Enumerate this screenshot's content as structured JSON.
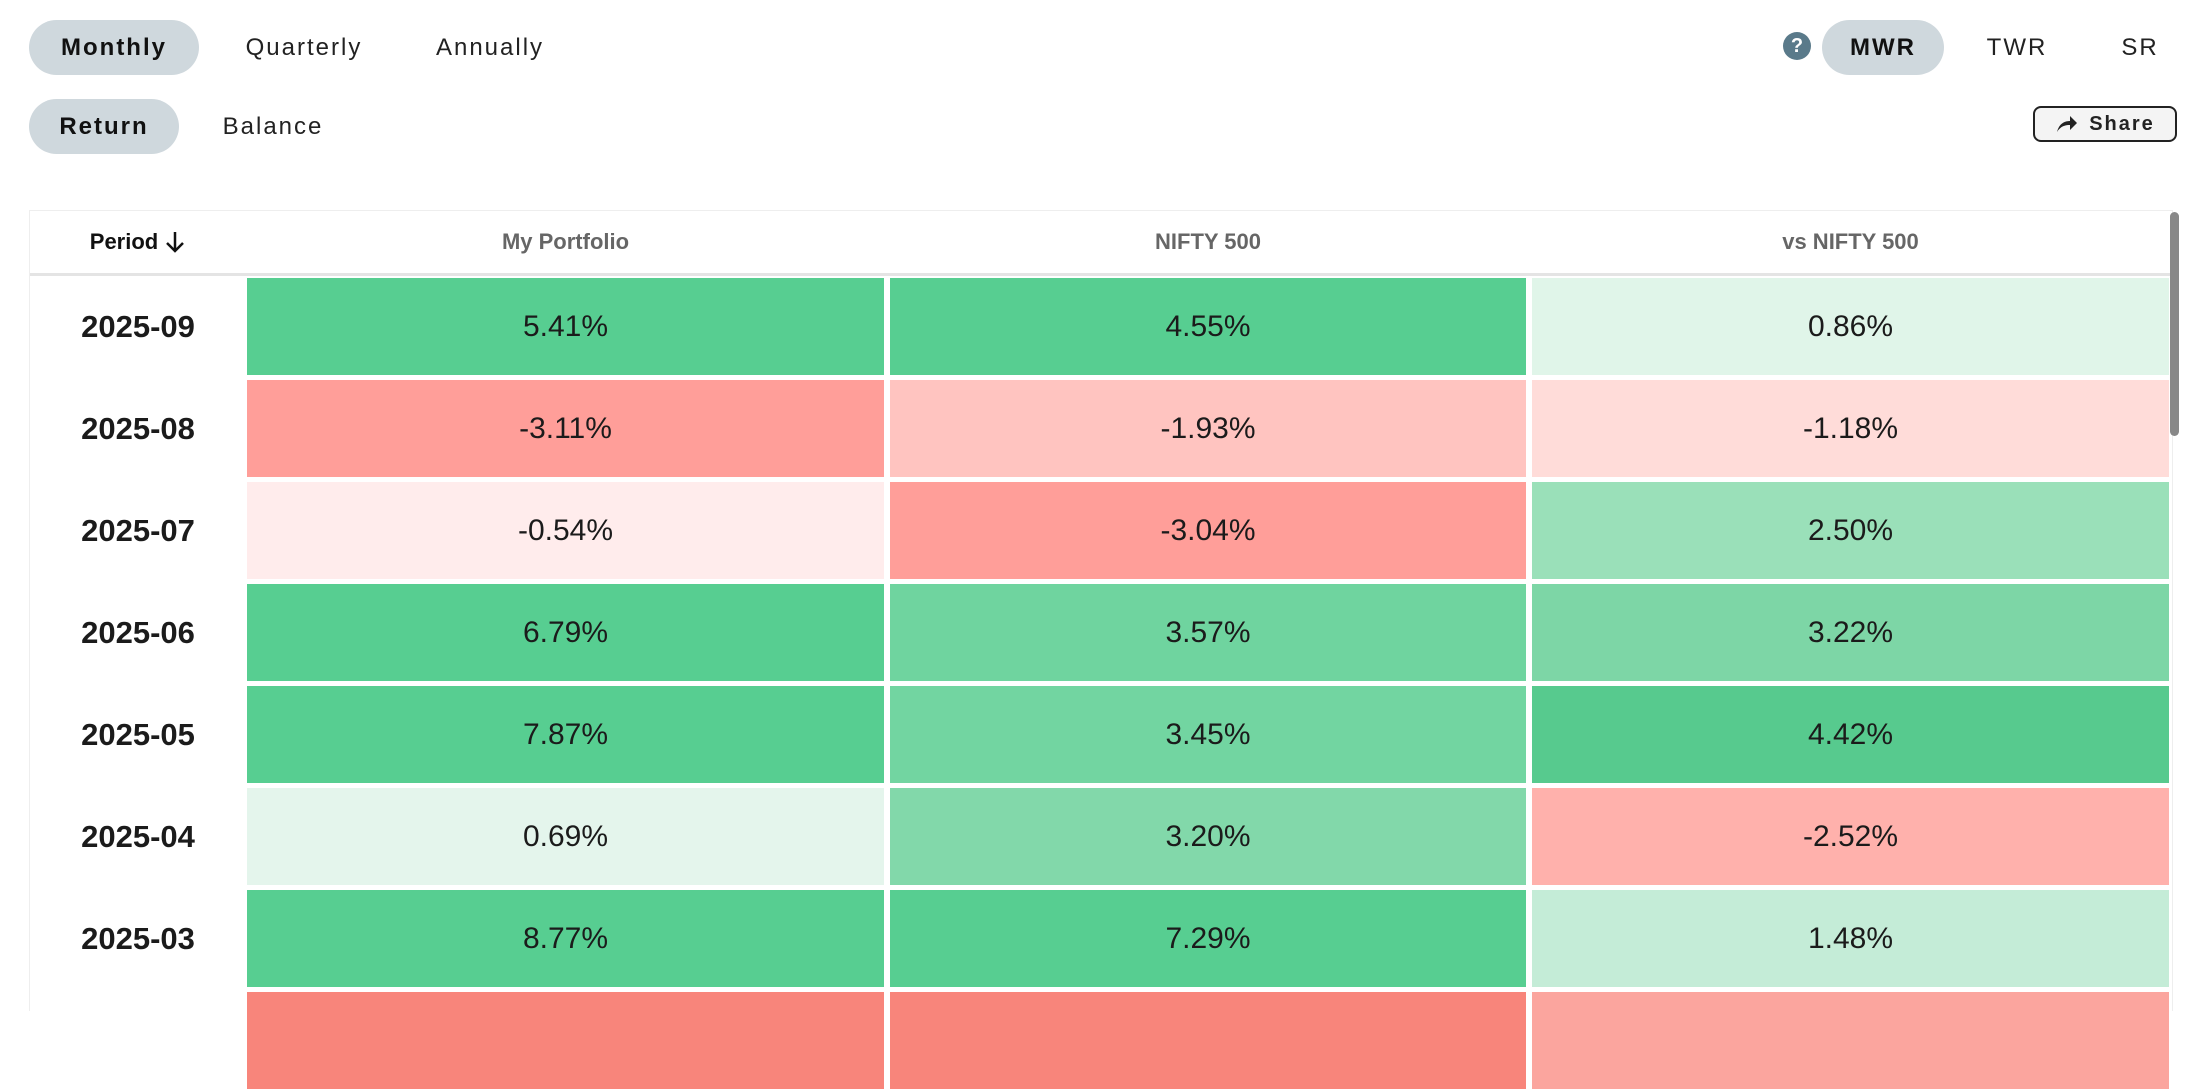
{
  "period_tabs": [
    {
      "label": "Monthly",
      "active": true
    },
    {
      "label": "Quarterly",
      "active": false
    },
    {
      "label": "Annually",
      "active": false
    }
  ],
  "view_tabs": [
    {
      "label": "Return",
      "active": true
    },
    {
      "label": "Balance",
      "active": false
    }
  ],
  "method_help_icon": "question-circle-icon",
  "method_tabs": [
    {
      "label": "MWR",
      "active": true
    },
    {
      "label": "TWR",
      "active": false
    },
    {
      "label": "SR",
      "active": false
    }
  ],
  "share": {
    "label": "Share",
    "icon": "share-arrow-icon"
  },
  "table": {
    "headers": {
      "period": "Period",
      "sort_icon": "arrow-down-icon",
      "cols": [
        "My Portfolio",
        "NIFTY 500",
        "vs NIFTY 500"
      ]
    },
    "rows": [
      {
        "period": "2025-09",
        "values": [
          "5.41%",
          "4.55%",
          "0.86%"
        ],
        "colors": [
          "#57ce91",
          "#57ce91",
          "#e0f5e9"
        ]
      },
      {
        "period": "2025-08",
        "values": [
          "-3.11%",
          "-1.93%",
          "-1.18%"
        ],
        "colors": [
          "#ff9e99",
          "#ffc4c0",
          "#ffdcd9"
        ]
      },
      {
        "period": "2025-07",
        "values": [
          "-0.54%",
          "-3.04%",
          "2.50%"
        ],
        "colors": [
          "#ffecec",
          "#ff9e99",
          "#9ae0b9"
        ]
      },
      {
        "period": "2025-06",
        "values": [
          "6.79%",
          "3.57%",
          "3.22%"
        ],
        "colors": [
          "#57ce91",
          "#6fd49f",
          "#7dd6a6"
        ]
      },
      {
        "period": "2025-05",
        "values": [
          "7.87%",
          "3.45%",
          "4.42%"
        ],
        "colors": [
          "#57ce91",
          "#72d5a1",
          "#57ca8e"
        ]
      },
      {
        "period": "2025-04",
        "values": [
          "0.69%",
          "3.20%",
          "-2.52%"
        ],
        "colors": [
          "#e4f5ec",
          "#82d8aa",
          "#ffb1ac"
        ]
      },
      {
        "period": "2025-03",
        "values": [
          "8.77%",
          "7.29%",
          "1.48%"
        ],
        "colors": [
          "#57ce91",
          "#57ce91",
          "#c4ecd7"
        ]
      },
      {
        "colors": [
          "#f8857b",
          "#f8857b",
          "#fba59e"
        ]
      }
    ]
  }
}
